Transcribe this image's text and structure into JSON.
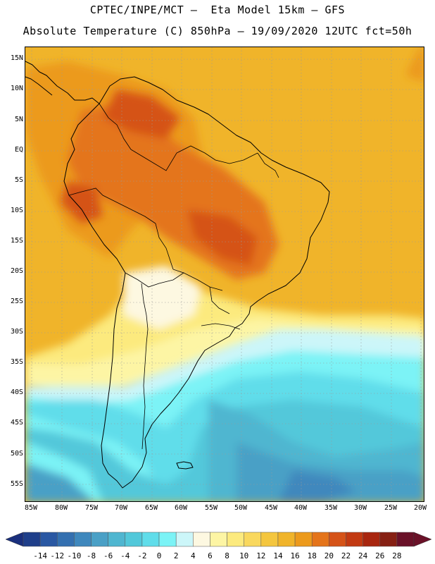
{
  "title_line1": "CPTEC/INPE/MCT –  Eta Model 15km – GFS",
  "title_line2": "Absolute Temperature (C) 850hPa – 19/09/2020 12UTC fct=50h",
  "lat_labels": [
    "15N",
    "10N",
    "5N",
    "EQ",
    "5S",
    "10S",
    "15S",
    "20S",
    "25S",
    "30S",
    "35S",
    "40S",
    "45S",
    "50S",
    "55S"
  ],
  "lon_labels": [
    "85W",
    "80W",
    "75W",
    "70W",
    "65W",
    "60W",
    "55W",
    "50W",
    "45W",
    "40W",
    "35W",
    "30W",
    "25W",
    "20W"
  ],
  "colorbar": {
    "labels": [
      "-14",
      "-12",
      "-10",
      "-8",
      "-6",
      "-4",
      "-2",
      "0",
      "2",
      "4",
      "6",
      "8",
      "10",
      "12",
      "14",
      "16",
      "18",
      "20",
      "22",
      "24",
      "26",
      "28"
    ],
    "colors": [
      "#1f3f8a",
      "#2a58a3",
      "#3470b0",
      "#3f88bd",
      "#4aa0c6",
      "#4fb6d0",
      "#52c8da",
      "#60ddea",
      "#7bf3f6",
      "#ccf6f9",
      "#fdf8e1",
      "#fdf5a4",
      "#fcea7e",
      "#f9d85e",
      "#f4c63e",
      "#f0b42a",
      "#ec9a1c",
      "#e4741a",
      "#d55318",
      "#c23a12",
      "#a8260f",
      "#862013",
      "#6a1128"
    ],
    "under_color": "#1a2f7d",
    "over_color": "#6a1128"
  }
}
